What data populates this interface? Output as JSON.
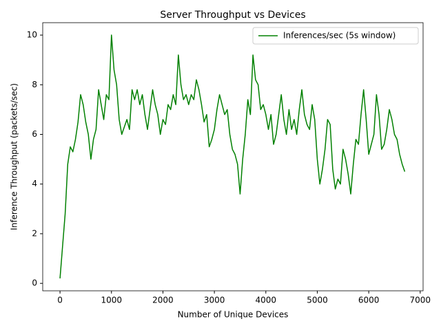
{
  "chart_data": {
    "type": "line",
    "title": "Server Throughput vs Devices",
    "x_label": "Number of Unique Devices",
    "y_label": "Inference Throughput (packets/sec)",
    "x": [
      0,
      50,
      100,
      150,
      200,
      250,
      300,
      350,
      400,
      450,
      500,
      550,
      600,
      650,
      700,
      750,
      800,
      850,
      900,
      950,
      1000,
      1050,
      1100,
      1150,
      1200,
      1250,
      1300,
      1350,
      1400,
      1450,
      1500,
      1550,
      1600,
      1650,
      1700,
      1750,
      1800,
      1850,
      1900,
      1950,
      2000,
      2050,
      2100,
      2150,
      2200,
      2250,
      2300,
      2350,
      2400,
      2450,
      2500,
      2550,
      2600,
      2650,
      2700,
      2750,
      2800,
      2850,
      2900,
      2950,
      3000,
      3050,
      3100,
      3150,
      3200,
      3250,
      3300,
      3350,
      3400,
      3450,
      3500,
      3550,
      3600,
      3650,
      3700,
      3750,
      3800,
      3850,
      3900,
      3950,
      4000,
      4050,
      4100,
      4150,
      4200,
      4250,
      4300,
      4350,
      4400,
      4450,
      4500,
      4550,
      4600,
      4650,
      4700,
      4750,
      4800,
      4850,
      4900,
      4950,
      5000,
      5050,
      5100,
      5150,
      5200,
      5250,
      5300,
      5350,
      5400,
      5450,
      5500,
      5550,
      5600,
      5650,
      5700,
      5750,
      5800,
      5850,
      5900,
      5950,
      6000,
      6050,
      6100,
      6150,
      6200,
      6250,
      6300,
      6350,
      6400,
      6450,
      6500,
      6550,
      6600,
      6650,
      6700
    ],
    "series": [
      {
        "name": "Inferences/sec (5s window)",
        "color": "#008000",
        "values": [
          0.2,
          1.5,
          2.8,
          4.8,
          5.5,
          5.3,
          5.8,
          6.5,
          7.6,
          7.2,
          6.5,
          6.0,
          5.0,
          5.8,
          6.2,
          7.8,
          7.2,
          6.6,
          7.6,
          7.4,
          10.0,
          8.6,
          8.0,
          6.6,
          6.0,
          6.3,
          6.6,
          6.2,
          7.8,
          7.4,
          7.8,
          7.2,
          7.6,
          6.8,
          6.2,
          7.0,
          7.8,
          7.2,
          6.8,
          6.0,
          6.6,
          6.4,
          7.2,
          7.0,
          7.6,
          7.2,
          9.2,
          8.0,
          7.4,
          7.6,
          7.2,
          7.6,
          7.4,
          8.2,
          7.8,
          7.2,
          6.5,
          6.8,
          5.5,
          5.8,
          6.2,
          7.0,
          7.6,
          7.2,
          6.8,
          7.0,
          6.0,
          5.4,
          5.2,
          4.8,
          3.6,
          5.0,
          6.0,
          7.4,
          6.8,
          9.2,
          8.2,
          8.0,
          7.0,
          7.2,
          6.8,
          6.2,
          6.8,
          5.6,
          6.0,
          6.8,
          7.6,
          6.6,
          6.0,
          7.0,
          6.2,
          6.6,
          6.0,
          7.0,
          7.8,
          6.8,
          6.4,
          6.2,
          7.2,
          6.6,
          5.0,
          4.0,
          4.6,
          5.4,
          6.6,
          6.4,
          4.6,
          3.8,
          4.2,
          4.0,
          5.4,
          5.0,
          4.4,
          3.6,
          4.8,
          5.8,
          5.6,
          6.8,
          7.8,
          6.6,
          5.2,
          5.6,
          6.0,
          7.6,
          6.8,
          5.4,
          5.6,
          6.2,
          7.0,
          6.6,
          6.0,
          5.8,
          5.2,
          4.8,
          4.5
        ]
      }
    ],
    "xlim": [
      -336,
      7056
    ],
    "ylim": [
      -0.3,
      10.5
    ],
    "xticks": [
      0,
      1000,
      2000,
      3000,
      4000,
      5000,
      6000,
      7000
    ],
    "yticks": [
      0,
      2,
      4,
      6,
      8,
      10
    ],
    "legend": "upper right"
  }
}
